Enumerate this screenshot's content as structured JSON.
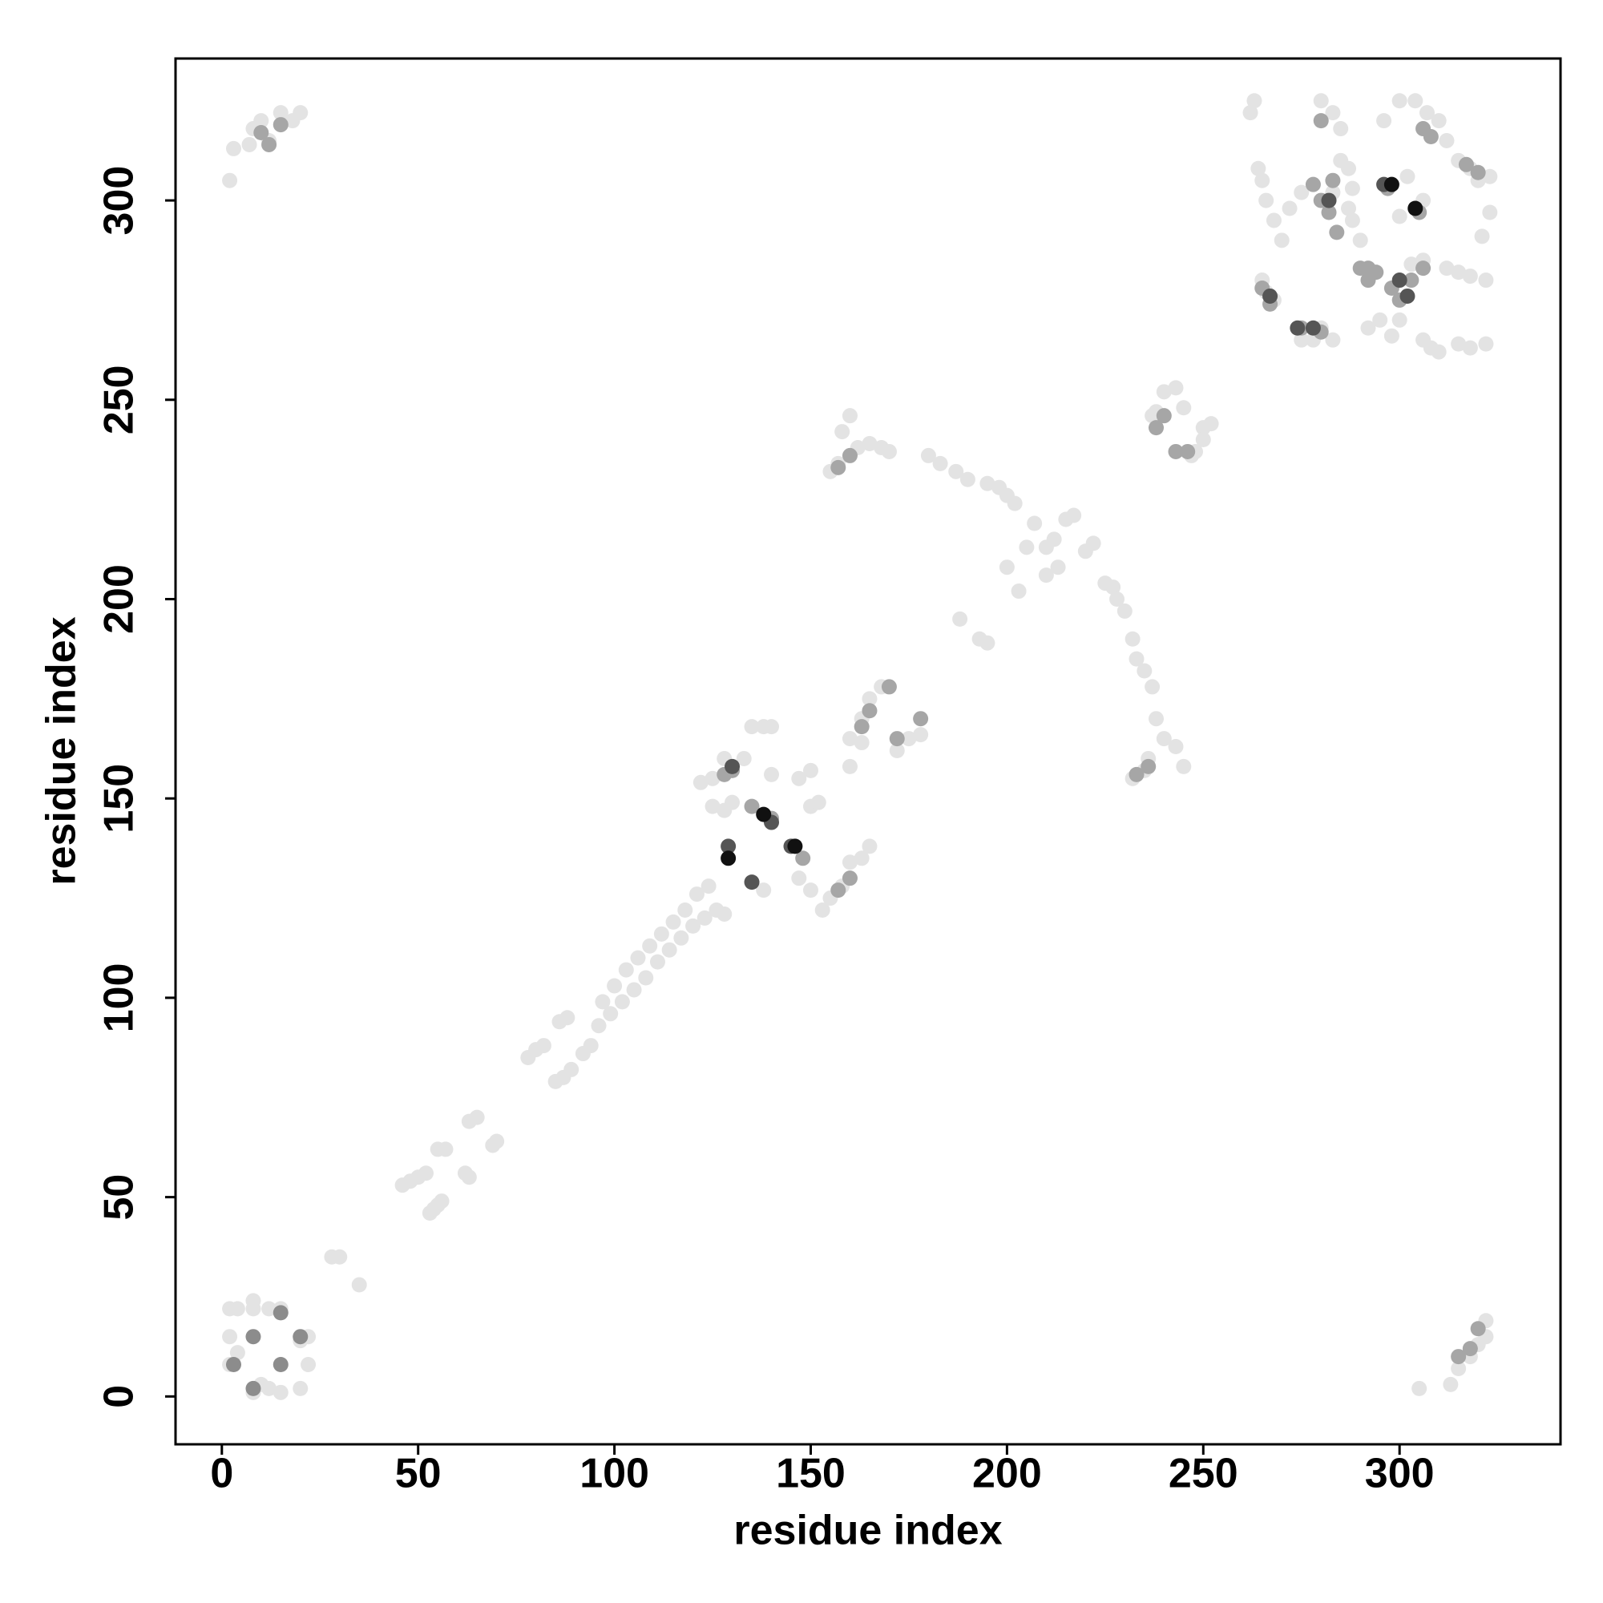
{
  "chart_data": {
    "type": "scatter",
    "x_label": "residue index",
    "y_label": "residue index",
    "xlim": [
      -11.8,
      341
    ],
    "ylim": [
      -12,
      335.6
    ],
    "xticks": [
      0,
      50,
      100,
      150,
      200,
      250,
      300
    ],
    "yticks": [
      0,
      50,
      100,
      150,
      200,
      250,
      300
    ],
    "series": [
      {
        "color": "#e3e3e3",
        "x": [
          2,
          4,
          8,
          8,
          12,
          15,
          2,
          4,
          2,
          12,
          8,
          15,
          20,
          22,
          20,
          22,
          10,
          2,
          3,
          7,
          8,
          10,
          12,
          15,
          18,
          20,
          305,
          313,
          315,
          318,
          320,
          322,
          322,
          28,
          30,
          35,
          46,
          48,
          50,
          52,
          53,
          55,
          56,
          54,
          55,
          57,
          62,
          63,
          63,
          65,
          69,
          70,
          78,
          80,
          82,
          86,
          88,
          97,
          100,
          103,
          106,
          109,
          112,
          115,
          118,
          121,
          124,
          85,
          87,
          89,
          92,
          94,
          96,
          99,
          102,
          105,
          108,
          111,
          114,
          117,
          120,
          123,
          126,
          128,
          122,
          125,
          128,
          133,
          135,
          138,
          140,
          125,
          128,
          130,
          140,
          147,
          150,
          150,
          152,
          145,
          147,
          150,
          153,
          155,
          158,
          160,
          163,
          165,
          160,
          163,
          163,
          165,
          168,
          172,
          175,
          178,
          160,
          138,
          155,
          157,
          162,
          165,
          168,
          170,
          158,
          160,
          180,
          183,
          187,
          190,
          195,
          198,
          200,
          202,
          207,
          212,
          215,
          217,
          220,
          222,
          205,
          210,
          200,
          203,
          210,
          213,
          225,
          227,
          228,
          230,
          232,
          233,
          235,
          237,
          238,
          240,
          243,
          245,
          232,
          235,
          236,
          188,
          195,
          193,
          237,
          240,
          243,
          245,
          247,
          248,
          250,
          252,
          250,
          238,
          262,
          263,
          264,
          265,
          266,
          268,
          270,
          272,
          275,
          265,
          266,
          268,
          275,
          278,
          280,
          283,
          280,
          283,
          285,
          285,
          287,
          288,
          290,
          292,
          295,
          298,
          300,
          296,
          300,
          302,
          304,
          307,
          310,
          312,
          315,
          318,
          320,
          323,
          323,
          321,
          312,
          315,
          318,
          322,
          322,
          318,
          315,
          306,
          308,
          310,
          303,
          306,
          300,
          306,
          288,
          287,
          283
        ],
        "y": [
          22,
          22,
          22,
          24,
          22,
          22,
          15,
          11,
          8,
          2,
          1,
          1,
          2,
          8,
          14,
          15,
          3,
          305,
          313,
          314,
          318,
          320,
          315,
          322,
          320,
          322,
          2,
          3,
          7,
          10,
          13,
          15,
          19,
          35,
          35,
          28,
          53,
          54,
          55,
          56,
          46,
          48,
          49,
          47,
          62,
          62,
          56,
          55,
          69,
          70,
          63,
          64,
          85,
          87,
          88,
          94,
          95,
          99,
          103,
          107,
          110,
          113,
          116,
          119,
          122,
          126,
          128,
          79,
          80,
          82,
          86,
          88,
          93,
          96,
          99,
          102,
          105,
          109,
          112,
          115,
          118,
          120,
          122,
          121,
          154,
          155,
          160,
          160,
          168,
          168,
          168,
          148,
          147,
          149,
          156,
          155,
          157,
          148,
          149,
          138,
          130,
          127,
          122,
          125,
          128,
          134,
          135,
          138,
          158,
          164,
          170,
          175,
          178,
          162,
          165,
          166,
          165,
          127,
          232,
          234,
          238,
          239,
          238,
          237,
          242,
          246,
          236,
          234,
          232,
          230,
          229,
          228,
          226,
          224,
          219,
          215,
          220,
          221,
          212,
          214,
          213,
          213,
          208,
          202,
          206,
          208,
          204,
          203,
          200,
          197,
          190,
          185,
          182,
          178,
          170,
          165,
          163,
          158,
          155,
          157,
          160,
          195,
          189,
          190,
          246,
          252,
          253,
          248,
          236,
          237,
          243,
          244,
          240,
          247,
          322,
          325,
          308,
          305,
          300,
          295,
          290,
          298,
          302,
          280,
          277,
          275,
          265,
          265,
          268,
          265,
          325,
          322,
          318,
          310,
          308,
          295,
          290,
          268,
          270,
          266,
          270,
          320,
          325,
          306,
          325,
          322,
          320,
          315,
          310,
          308,
          305,
          306,
          297,
          291,
          283,
          282,
          281,
          280,
          264,
          263,
          264,
          265,
          263,
          262,
          284,
          285,
          296,
          300,
          303,
          298,
          302
        ]
      },
      {
        "color": "#a6a6a6",
        "x": [
          10,
          15,
          12,
          315,
          318,
          320,
          128,
          130,
          160,
          157,
          148,
          163,
          170,
          178,
          165,
          172,
          135,
          140,
          233,
          236,
          157,
          160,
          238,
          240,
          243,
          246,
          278,
          280,
          282,
          284,
          283,
          280,
          290,
          292,
          294,
          298,
          300,
          303,
          306,
          305,
          297,
          306,
          308,
          317,
          320,
          265,
          267,
          275,
          280,
          292
        ],
        "y": [
          317,
          319,
          314,
          10,
          12,
          17,
          156,
          157,
          130,
          127,
          135,
          168,
          178,
          170,
          172,
          165,
          148,
          145,
          156,
          158,
          233,
          236,
          243,
          246,
          237,
          237,
          304,
          300,
          297,
          292,
          305,
          320,
          283,
          280,
          282,
          278,
          275,
          280,
          283,
          297,
          303,
          318,
          316,
          309,
          307,
          278,
          274,
          268,
          267,
          283
        ]
      },
      {
        "color": "#8c8c8c",
        "x": [
          3,
          8,
          8,
          15,
          15,
          20
        ],
        "y": [
          8,
          15,
          2,
          8,
          21,
          15
        ]
      },
      {
        "color": "#555555",
        "x": [
          129,
          135,
          130,
          140,
          145,
          267,
          274,
          278,
          282,
          296,
          300,
          302
        ],
        "y": [
          138,
          129,
          158,
          144,
          138,
          276,
          268,
          268,
          300,
          304,
          280,
          276
        ]
      },
      {
        "color": "#111111",
        "x": [
          129,
          138,
          146,
          298,
          304
        ],
        "y": [
          135,
          146,
          138,
          304,
          298
        ]
      }
    ]
  }
}
